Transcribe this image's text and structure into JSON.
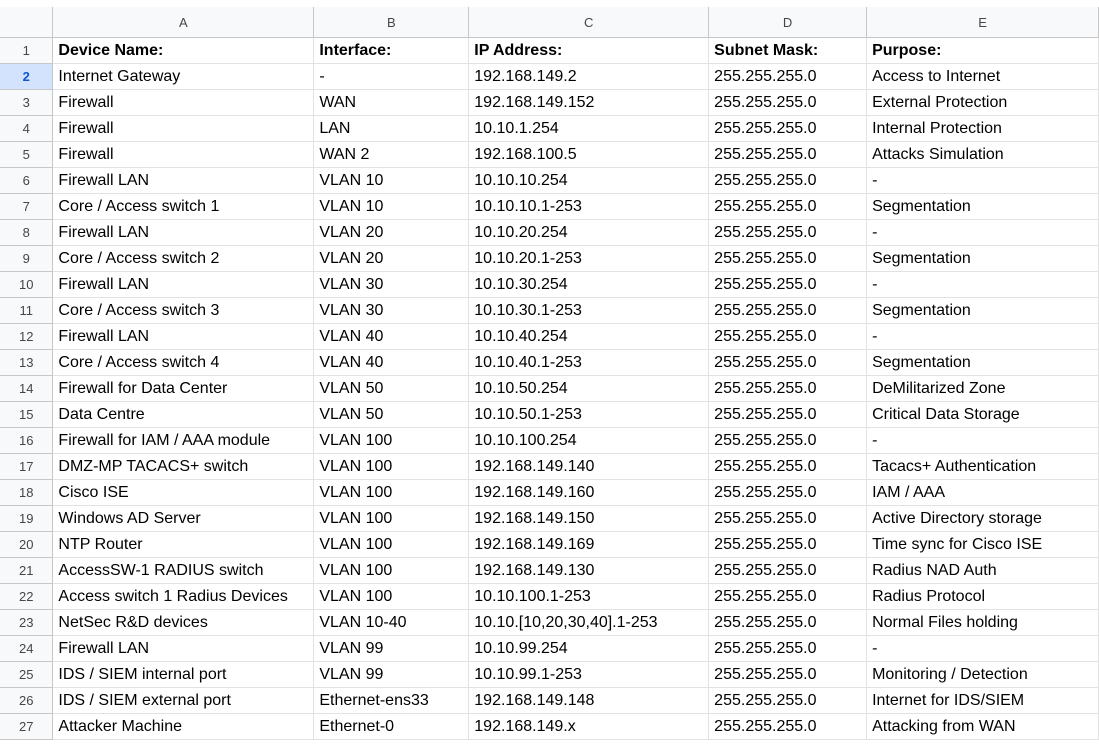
{
  "columns": [
    "A",
    "B",
    "C",
    "D",
    "E"
  ],
  "rows": [
    {
      "num": "1",
      "cells": [
        "Device Name:",
        "Interface:",
        "IP Address:",
        "Subnet Mask:",
        "Purpose:"
      ]
    },
    {
      "num": "2",
      "cells": [
        "Internet Gateway",
        "-",
        "192.168.149.2",
        "255.255.255.0",
        "Access to Internet"
      ]
    },
    {
      "num": "3",
      "cells": [
        "Firewall",
        "WAN",
        "192.168.149.152",
        "255.255.255.0",
        "External Protection"
      ]
    },
    {
      "num": "4",
      "cells": [
        "Firewall",
        "LAN",
        "10.10.1.254",
        "255.255.255.0",
        "Internal Protection"
      ]
    },
    {
      "num": "5",
      "cells": [
        "Firewall",
        "WAN 2",
        "192.168.100.5",
        "255.255.255.0",
        "Attacks Simulation"
      ]
    },
    {
      "num": "6",
      "cells": [
        "Firewall LAN",
        "VLAN 10",
        "10.10.10.254",
        "255.255.255.0",
        "-"
      ]
    },
    {
      "num": "7",
      "cells": [
        "Core / Access switch 1",
        "VLAN 10",
        "10.10.10.1-253",
        "255.255.255.0",
        "Segmentation"
      ]
    },
    {
      "num": "8",
      "cells": [
        "Firewall LAN",
        "VLAN 20",
        "10.10.20.254",
        "255.255.255.0",
        "-"
      ]
    },
    {
      "num": "9",
      "cells": [
        "Core / Access switch 2",
        "VLAN 20",
        "10.10.20.1-253",
        "255.255.255.0",
        "Segmentation"
      ]
    },
    {
      "num": "10",
      "cells": [
        "Firewall LAN",
        "VLAN 30",
        "10.10.30.254",
        "255.255.255.0",
        "-"
      ]
    },
    {
      "num": "11",
      "cells": [
        "Core / Access switch 3",
        "VLAN 30",
        "10.10.30.1-253",
        "255.255.255.0",
        "Segmentation"
      ]
    },
    {
      "num": "12",
      "cells": [
        "Firewall LAN",
        "VLAN 40",
        "10.10.40.254",
        "255.255.255.0",
        "-"
      ]
    },
    {
      "num": "13",
      "cells": [
        "Core / Access switch 4",
        "VLAN 40",
        "10.10.40.1-253",
        "255.255.255.0",
        "Segmentation"
      ]
    },
    {
      "num": "14",
      "cells": [
        "Firewall for Data Center",
        "VLAN 50",
        "10.10.50.254",
        "255.255.255.0",
        "DeMilitarized Zone"
      ]
    },
    {
      "num": "15",
      "cells": [
        "Data Centre",
        "VLAN 50",
        "10.10.50.1-253",
        "255.255.255.0",
        "Critical Data Storage"
      ]
    },
    {
      "num": "16",
      "cells": [
        "Firewall for IAM / AAA module",
        "VLAN 100",
        "10.10.100.254",
        "255.255.255.0",
        "-"
      ]
    },
    {
      "num": "17",
      "cells": [
        "DMZ-MP TACACS+ switch",
        "VLAN 100",
        "192.168.149.140",
        "255.255.255.0",
        "Tacacs+ Authentication"
      ]
    },
    {
      "num": "18",
      "cells": [
        "Cisco ISE",
        "VLAN 100",
        "192.168.149.160",
        "255.255.255.0",
        "IAM / AAA"
      ]
    },
    {
      "num": "19",
      "cells": [
        "Windows AD Server",
        "VLAN 100",
        "192.168.149.150",
        "255.255.255.0",
        "Active Directory storage"
      ]
    },
    {
      "num": "20",
      "cells": [
        "NTP Router",
        "VLAN 100",
        "192.168.149.169",
        "255.255.255.0",
        "Time sync for Cisco ISE"
      ]
    },
    {
      "num": "21",
      "cells": [
        "AccessSW-1 RADIUS switch",
        "VLAN 100",
        "192.168.149.130",
        "255.255.255.0",
        "Radius NAD Auth"
      ]
    },
    {
      "num": "22",
      "cells": [
        "Access switch 1 Radius Devices",
        "VLAN 100",
        "10.10.100.1-253",
        "255.255.255.0",
        "Radius Protocol"
      ]
    },
    {
      "num": "23",
      "cells": [
        "NetSec R&D devices",
        "VLAN 10-40",
        "10.10.[10,20,30,40].1-253",
        "255.255.255.0",
        "Normal Files holding"
      ]
    },
    {
      "num": "24",
      "cells": [
        "Firewall LAN",
        "VLAN 99",
        "10.10.99.254",
        "255.255.255.0",
        "-"
      ]
    },
    {
      "num": "25",
      "cells": [
        "IDS / SIEM internal port",
        "VLAN 99",
        "10.10.99.1-253",
        "255.255.255.0",
        "Monitoring / Detection"
      ]
    },
    {
      "num": "26",
      "cells": [
        "IDS / SIEM external port",
        "Ethernet-ens33",
        "192.168.149.148",
        "255.255.255.0",
        "Internet for IDS/SIEM"
      ]
    },
    {
      "num": "27",
      "cells": [
        "Attacker Machine",
        "Ethernet-0",
        "192.168.149.x",
        "255.255.255.0",
        "Attacking from WAN"
      ]
    }
  ],
  "selected_row": "2",
  "colors": {
    "header_bg": "#f8f9fa",
    "grid_line": "#e2e2e2",
    "selected_header_bg": "#d3e3fd",
    "selected_header_text": "#0b57d0"
  }
}
